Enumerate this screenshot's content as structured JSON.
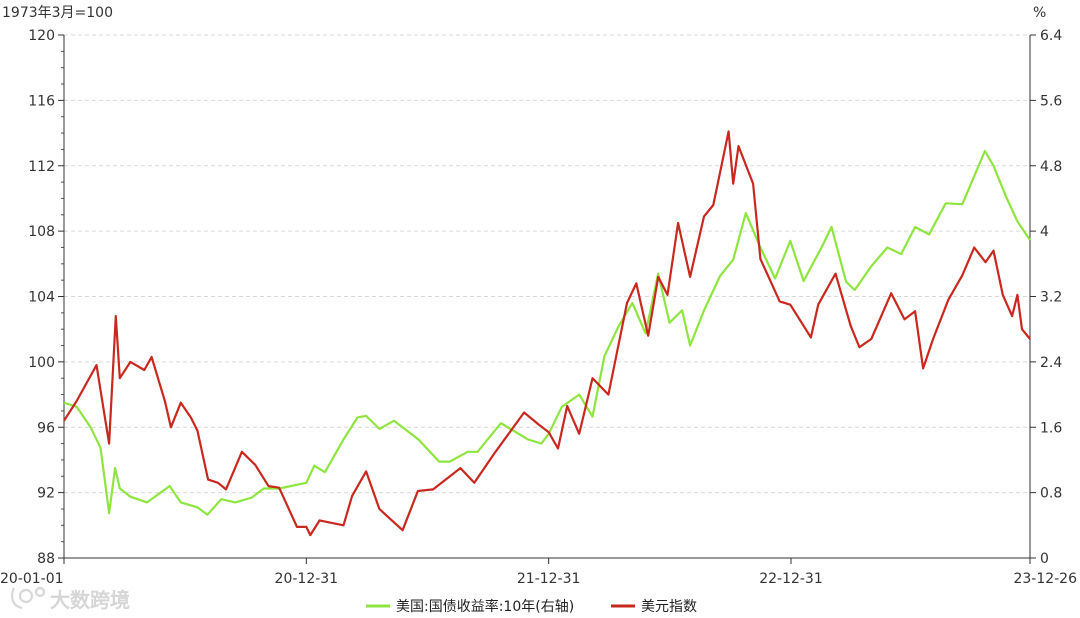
{
  "chart_data": {
    "type": "line",
    "left_axis_unit": "1973年3月=100",
    "right_axis_unit": "%",
    "x_tick_labels": [
      "20-01-01",
      "20-12-31",
      "21-12-31",
      "22-12-31",
      "23-12-26"
    ],
    "x_range": [
      "2020-01-01",
      "2023-12-26"
    ],
    "y_left": {
      "ylim": [
        88,
        120
      ],
      "ticks": [
        88,
        92,
        96,
        100,
        104,
        108,
        112,
        116,
        120
      ]
    },
    "y_right": {
      "ylim": [
        0,
        6.4
      ],
      "ticks": [
        "0",
        "0.8",
        "1.6",
        "2.4",
        "3.2",
        "4",
        "4.8",
        "5.6",
        "6.4"
      ]
    },
    "grid": "horizontal-dashed",
    "legend_position": "bottom",
    "series": [
      {
        "name": "美国:国债收益率:10年(右轴)",
        "axis": "right",
        "color": "#8ee53f",
        "points": [
          [
            "2020-01-01",
            1.9
          ],
          [
            "2020-01-20",
            1.85
          ],
          [
            "2020-02-10",
            1.6
          ],
          [
            "2020-02-25",
            1.35
          ],
          [
            "2020-03-09",
            0.55
          ],
          [
            "2020-03-18",
            1.1
          ],
          [
            "2020-03-25",
            0.85
          ],
          [
            "2020-04-10",
            0.75
          ],
          [
            "2020-05-05",
            0.68
          ],
          [
            "2020-06-08",
            0.88
          ],
          [
            "2020-06-25",
            0.68
          ],
          [
            "2020-07-20",
            0.62
          ],
          [
            "2020-08-04",
            0.53
          ],
          [
            "2020-08-25",
            0.72
          ],
          [
            "2020-09-15",
            0.68
          ],
          [
            "2020-10-10",
            0.74
          ],
          [
            "2020-10-28",
            0.85
          ],
          [
            "2020-11-20",
            0.85
          ],
          [
            "2020-12-31",
            0.92
          ],
          [
            "2021-01-12",
            1.13
          ],
          [
            "2021-01-28",
            1.05
          ],
          [
            "2021-02-25",
            1.45
          ],
          [
            "2021-03-18",
            1.72
          ],
          [
            "2021-03-31",
            1.74
          ],
          [
            "2021-04-20",
            1.58
          ],
          [
            "2021-05-12",
            1.68
          ],
          [
            "2021-06-18",
            1.45
          ],
          [
            "2021-07-19",
            1.18
          ],
          [
            "2021-08-04",
            1.18
          ],
          [
            "2021-08-31",
            1.3
          ],
          [
            "2021-09-15",
            1.3
          ],
          [
            "2021-10-20",
            1.65
          ],
          [
            "2021-11-30",
            1.45
          ],
          [
            "2021-12-20",
            1.4
          ],
          [
            "2021-12-31",
            1.52
          ],
          [
            "2022-01-20",
            1.85
          ],
          [
            "2022-02-15",
            2.0
          ],
          [
            "2022-03-07",
            1.73
          ],
          [
            "2022-03-25",
            2.47
          ],
          [
            "2022-04-15",
            2.83
          ],
          [
            "2022-05-06",
            3.12
          ],
          [
            "2022-05-26",
            2.75
          ],
          [
            "2022-06-14",
            3.48
          ],
          [
            "2022-07-01",
            2.88
          ],
          [
            "2022-07-20",
            3.03
          ],
          [
            "2022-08-01",
            2.6
          ],
          [
            "2022-08-22",
            3.03
          ],
          [
            "2022-09-15",
            3.45
          ],
          [
            "2022-10-05",
            3.65
          ],
          [
            "2022-10-24",
            4.22
          ],
          [
            "2022-11-15",
            3.8
          ],
          [
            "2022-12-07",
            3.42
          ],
          [
            "2022-12-30",
            3.88
          ],
          [
            "2023-01-19",
            3.39
          ],
          [
            "2023-02-15",
            3.8
          ],
          [
            "2023-03-02",
            4.05
          ],
          [
            "2023-03-24",
            3.38
          ],
          [
            "2023-04-06",
            3.28
          ],
          [
            "2023-05-01",
            3.57
          ],
          [
            "2023-05-25",
            3.8
          ],
          [
            "2023-06-15",
            3.72
          ],
          [
            "2023-07-06",
            4.05
          ],
          [
            "2023-07-27",
            3.96
          ],
          [
            "2023-08-21",
            4.34
          ],
          [
            "2023-09-15",
            4.33
          ],
          [
            "2023-10-19",
            4.98
          ],
          [
            "2023-11-01",
            4.8
          ],
          [
            "2023-11-20",
            4.42
          ],
          [
            "2023-12-07",
            4.12
          ],
          [
            "2023-12-26",
            3.89
          ]
        ]
      },
      {
        "name": "美元指数",
        "axis": "left",
        "color": "#c8281e",
        "points": [
          [
            "2020-01-01",
            96.4
          ],
          [
            "2020-01-20",
            97.6
          ],
          [
            "2020-02-19",
            99.8
          ],
          [
            "2020-03-09",
            95.0
          ],
          [
            "2020-03-19",
            102.8
          ],
          [
            "2020-03-25",
            99.0
          ],
          [
            "2020-04-10",
            100.0
          ],
          [
            "2020-05-01",
            99.5
          ],
          [
            "2020-05-12",
            100.3
          ],
          [
            "2020-06-01",
            97.6
          ],
          [
            "2020-06-10",
            96.0
          ],
          [
            "2020-06-25",
            97.5
          ],
          [
            "2020-07-10",
            96.6
          ],
          [
            "2020-07-20",
            95.8
          ],
          [
            "2020-08-05",
            92.8
          ],
          [
            "2020-08-20",
            92.6
          ],
          [
            "2020-09-01",
            92.2
          ],
          [
            "2020-09-25",
            94.5
          ],
          [
            "2020-10-15",
            93.7
          ],
          [
            "2020-11-04",
            92.4
          ],
          [
            "2020-11-20",
            92.3
          ],
          [
            "2020-12-17",
            89.9
          ],
          [
            "2020-12-31",
            89.9
          ],
          [
            "2021-01-06",
            89.4
          ],
          [
            "2021-01-20",
            90.3
          ],
          [
            "2021-02-25",
            90.0
          ],
          [
            "2021-03-10",
            91.8
          ],
          [
            "2021-03-31",
            93.3
          ],
          [
            "2021-04-20",
            91.0
          ],
          [
            "2021-05-25",
            89.7
          ],
          [
            "2021-06-17",
            92.1
          ],
          [
            "2021-07-10",
            92.2
          ],
          [
            "2021-08-20",
            93.5
          ],
          [
            "2021-09-10",
            92.6
          ],
          [
            "2021-10-12",
            94.5
          ],
          [
            "2021-11-24",
            96.9
          ],
          [
            "2021-12-15",
            96.2
          ],
          [
            "2021-12-31",
            95.7
          ],
          [
            "2022-01-14",
            94.7
          ],
          [
            "2022-01-28",
            97.3
          ],
          [
            "2022-02-15",
            95.6
          ],
          [
            "2022-03-07",
            99.0
          ],
          [
            "2022-03-31",
            98.0
          ],
          [
            "2022-04-28",
            103.6
          ],
          [
            "2022-05-12",
            104.8
          ],
          [
            "2022-05-30",
            101.6
          ],
          [
            "2022-06-14",
            105.2
          ],
          [
            "2022-06-28",
            104.1
          ],
          [
            "2022-07-14",
            108.5
          ],
          [
            "2022-08-01",
            105.2
          ],
          [
            "2022-08-22",
            108.9
          ],
          [
            "2022-09-05",
            109.6
          ],
          [
            "2022-09-28",
            114.1
          ],
          [
            "2022-10-05",
            110.9
          ],
          [
            "2022-10-13",
            113.2
          ],
          [
            "2022-11-04",
            110.9
          ],
          [
            "2022-11-15",
            106.3
          ],
          [
            "2022-12-14",
            103.7
          ],
          [
            "2022-12-30",
            103.5
          ],
          [
            "2023-01-30",
            101.5
          ],
          [
            "2023-02-10",
            103.5
          ],
          [
            "2023-03-08",
            105.4
          ],
          [
            "2023-03-31",
            102.2
          ],
          [
            "2023-04-13",
            100.9
          ],
          [
            "2023-05-01",
            101.4
          ],
          [
            "2023-05-31",
            104.2
          ],
          [
            "2023-06-20",
            102.6
          ],
          [
            "2023-07-06",
            103.1
          ],
          [
            "2023-07-18",
            99.6
          ],
          [
            "2023-08-02",
            101.4
          ],
          [
            "2023-08-25",
            103.8
          ],
          [
            "2023-09-15",
            105.3
          ],
          [
            "2023-10-03",
            107.0
          ],
          [
            "2023-10-20",
            106.1
          ],
          [
            "2023-11-01",
            106.8
          ],
          [
            "2023-11-15",
            104.1
          ],
          [
            "2023-11-29",
            102.8
          ],
          [
            "2023-12-07",
            104.1
          ],
          [
            "2023-12-14",
            102.0
          ],
          [
            "2023-12-26",
            101.4
          ]
        ]
      }
    ]
  },
  "watermark": "大数跨境"
}
